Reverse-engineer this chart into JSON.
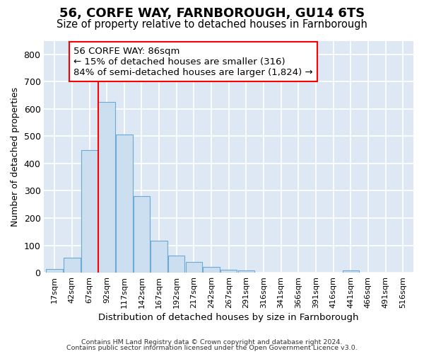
{
  "title1": "56, CORFE WAY, FARNBOROUGH, GU14 6TS",
  "title2": "Size of property relative to detached houses in Farnborough",
  "xlabel": "Distribution of detached houses by size in Farnborough",
  "ylabel": "Number of detached properties",
  "categories": [
    "17sqm",
    "42sqm",
    "67sqm",
    "92sqm",
    "117sqm",
    "142sqm",
    "167sqm",
    "192sqm",
    "217sqm",
    "242sqm",
    "267sqm",
    "291sqm",
    "316sqm",
    "341sqm",
    "366sqm",
    "391sqm",
    "416sqm",
    "441sqm",
    "466sqm",
    "491sqm",
    "516sqm"
  ],
  "values": [
    12,
    55,
    450,
    625,
    505,
    280,
    118,
    62,
    38,
    22,
    10,
    8,
    0,
    0,
    0,
    0,
    0,
    8,
    0,
    0,
    0
  ],
  "bar_color": "#ccdff0",
  "bar_edge_color": "#6aaad4",
  "annotation_line1": "56 CORFE WAY: 86sqm",
  "annotation_line2": "← 15% of detached houses are smaller (316)",
  "annotation_line3": "84% of semi-detached houses are larger (1,824) →",
  "footnote1": "Contains HM Land Registry data © Crown copyright and database right 2024.",
  "footnote2": "Contains public sector information licensed under the Open Government Licence v3.0.",
  "ylim": [
    0,
    850
  ],
  "yticks": [
    0,
    100,
    200,
    300,
    400,
    500,
    600,
    700,
    800
  ],
  "bg_color": "#dde8f4",
  "grid_color": "#ffffff",
  "red_line_x": 3.0,
  "title1_fontsize": 13,
  "title2_fontsize": 10.5,
  "bar_width": 0.95
}
